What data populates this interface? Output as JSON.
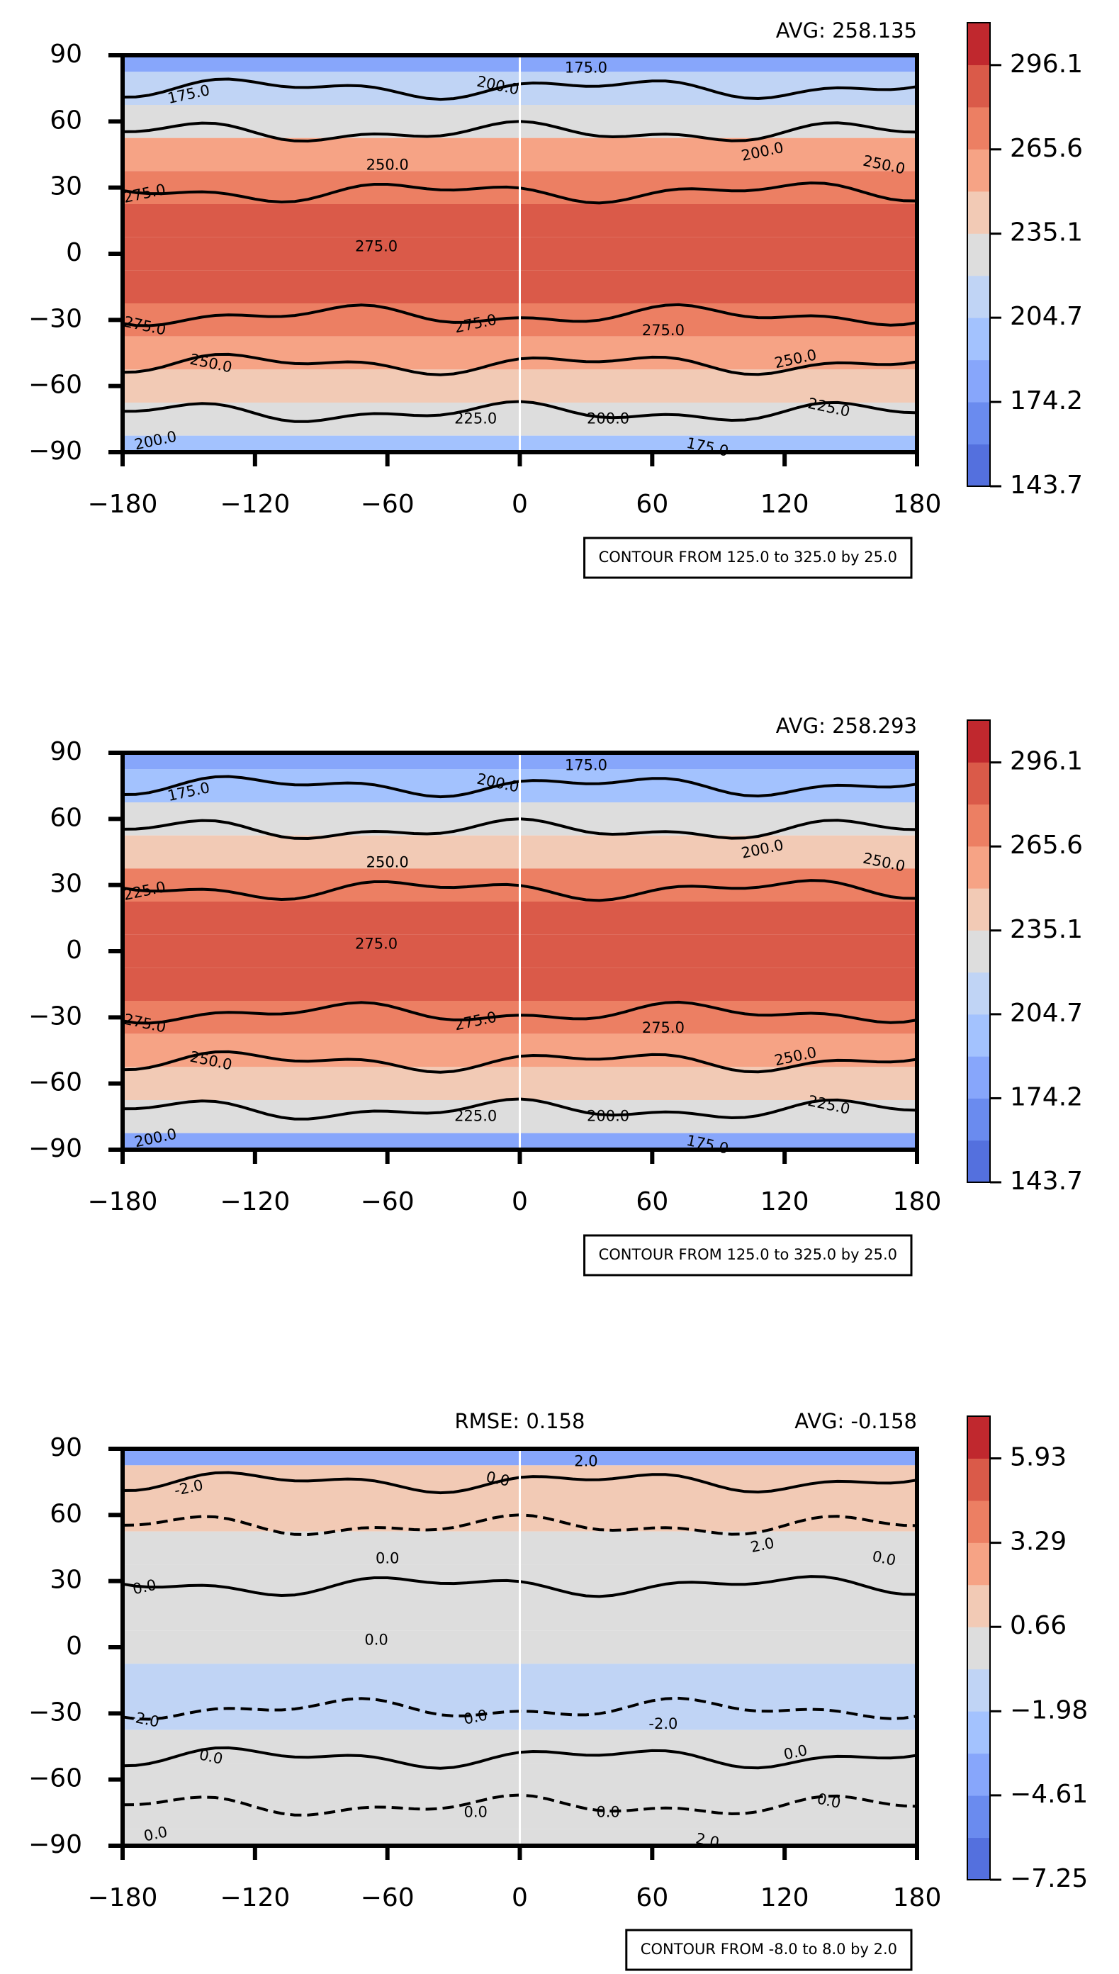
{
  "chart_data": [
    {
      "type": "contour",
      "avg_label": "AVG: 258.135",
      "note": "CONTOUR FROM 125.0 to 325.0 by 25.0",
      "xlim": [
        -180,
        180
      ],
      "ylim": [
        -90,
        90
      ],
      "xticks": [
        {
          "value": -180,
          "label": "−180"
        },
        {
          "value": -120,
          "label": "−120"
        },
        {
          "value": -60,
          "label": "−60"
        },
        0,
        60,
        120,
        180
      ],
      "yticks": [
        {
          "value": -90,
          "label": "−90"
        },
        {
          "value": -60,
          "label": "−60"
        },
        {
          "value": -30,
          "label": "−30"
        },
        0,
        30,
        60,
        90
      ],
      "lat": [
        90,
        75,
        60,
        45,
        30,
        15,
        0,
        -15,
        -30,
        -45,
        -60,
        -75,
        -90
      ],
      "values": [
        175,
        205,
        235,
        252,
        272,
        290,
        292,
        286,
        275,
        262,
        244,
        222,
        190
      ],
      "colorbar": {
        "lim": [
          143.7,
          311.45
        ],
        "ticks": [
          143.7,
          174.2,
          204.7,
          235.1,
          265.6,
          296.1
        ],
        "colors": [
          "#5470de",
          "#6a8bef",
          "#87a6fb",
          "#a3c2fe",
          "#c0d4f5",
          "#dddddd",
          "#f2cab5",
          "#f6a385",
          "#ec7f63",
          "#da5a49",
          "#c0282e"
        ]
      },
      "contour_labels": [
        "175.0",
        "175.0",
        "200.0",
        "200.0",
        "250.0",
        "250.0",
        "275.0",
        "275.0",
        "275.0",
        "275.0",
        "275.0",
        "250.0",
        "250.0",
        "225.0",
        "225.0",
        "200.0",
        "200.0",
        "175.0"
      ]
    },
    {
      "type": "contour",
      "avg_label": "AVG: 258.293",
      "note": "CONTOUR FROM 125.0 to 325.0 by 25.0",
      "xlim": [
        -180,
        180
      ],
      "ylim": [
        -90,
        90
      ],
      "xticks": [
        {
          "value": -180,
          "label": "−180"
        },
        {
          "value": -120,
          "label": "−120"
        },
        {
          "value": -60,
          "label": "−60"
        },
        0,
        60,
        120,
        180
      ],
      "yticks": [
        {
          "value": -90,
          "label": "−90"
        },
        {
          "value": -60,
          "label": "−60"
        },
        {
          "value": -30,
          "label": "−30"
        },
        0,
        30,
        60,
        90
      ],
      "lat": [
        90,
        75,
        60,
        45,
        30,
        15,
        0,
        -15,
        -30,
        -45,
        -60,
        -75,
        -90
      ],
      "values": [
        178,
        200,
        230,
        250,
        270,
        288,
        292,
        287,
        276,
        262,
        245,
        222,
        188
      ],
      "colorbar": {
        "lim": [
          143.7,
          311.45
        ],
        "ticks": [
          143.7,
          174.2,
          204.7,
          235.1,
          265.6,
          296.1
        ],
        "colors": [
          "#5470de",
          "#6a8bef",
          "#87a6fb",
          "#a3c2fe",
          "#c0d4f5",
          "#dddddd",
          "#f2cab5",
          "#f6a385",
          "#ec7f63",
          "#da5a49",
          "#c0282e"
        ]
      },
      "contour_labels": [
        "175.0",
        "175.0",
        "200.0",
        "200.0",
        "250.0",
        "250.0",
        "225.0",
        "275.0",
        "275.0",
        "275.0",
        "275.0",
        "250.0",
        "250.0",
        "225.0",
        "225.0",
        "200.0",
        "200.0",
        "175.0"
      ]
    },
    {
      "type": "contour",
      "rmse_label": "RMSE: 0.158",
      "avg_label": "AVG: -0.158",
      "note": "CONTOUR FROM -8.0 to 8.0 by 2.0",
      "xlim": [
        -180,
        180
      ],
      "ylim": [
        -90,
        90
      ],
      "xticks": [
        {
          "value": -180,
          "label": "−180"
        },
        {
          "value": -120,
          "label": "−120"
        },
        {
          "value": -60,
          "label": "−60"
        },
        0,
        60,
        120,
        180
      ],
      "yticks": [
        {
          "value": -90,
          "label": "−90"
        },
        {
          "value": -60,
          "label": "−60"
        },
        {
          "value": -30,
          "label": "−30"
        },
        0,
        30,
        60,
        90
      ],
      "lat": [
        90,
        75,
        60,
        45,
        30,
        15,
        0,
        -15,
        -30,
        -45,
        -60,
        -75,
        -90
      ],
      "values": [
        -4,
        1,
        1.5,
        0.5,
        0,
        0,
        -0.5,
        -1.5,
        -1,
        0,
        0,
        0,
        -0.5
      ],
      "colorbar": {
        "lim": [
          -7.25,
          7.25
        ],
        "ticks": [
          {
            "value": -7.25,
            "label": "−7.25"
          },
          {
            "value": -4.61,
            "label": "−4.61"
          },
          {
            "value": -1.98,
            "label": "−1.98"
          },
          0.66,
          3.29,
          5.93
        ],
        "colors": [
          "#5470de",
          "#6a8bef",
          "#87a6fb",
          "#a3c2fe",
          "#c0d4f5",
          "#dddddd",
          "#f2cab5",
          "#f6a385",
          "#ec7f63",
          "#da5a49",
          "#c0282e"
        ]
      },
      "contour_labels": [
        "-2.0",
        "2.0",
        "0.0",
        "2.0",
        "0.0",
        "0.0",
        "0.0",
        "0.0",
        "-2.0",
        "0.0",
        "-2.0",
        "0.0",
        "0.0",
        "0.0",
        "0.0",
        "0.0",
        "0.0",
        "2.0"
      ]
    }
  ]
}
